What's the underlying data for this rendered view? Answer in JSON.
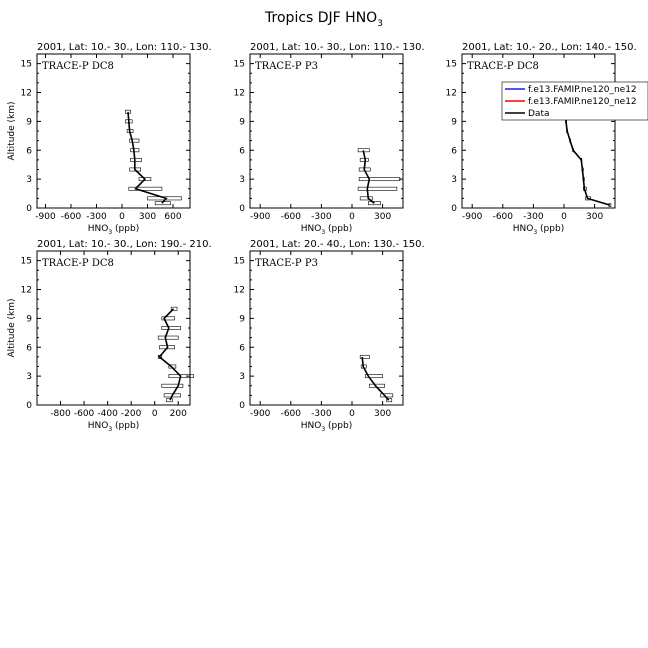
{
  "figure": {
    "title_main": "Tropics DJF HNO",
    "title_sub": "3"
  },
  "chart_data": [
    {
      "type": "line",
      "header": "2001, Lat: 10.- 30., Lon: 110.- 130.",
      "label": "TRACE-P DC8",
      "xlabel": "HNO",
      "xlabel_sub": "3",
      "xlabel_unit": " (ppb)",
      "ylabel": "Altitude (km)",
      "xlim": [
        -1000,
        800
      ],
      "xticks": [
        -900,
        -600,
        -300,
        0,
        300,
        600
      ],
      "ylim": [
        0,
        16
      ],
      "yticks": [
        0,
        3,
        6,
        9,
        12,
        15
      ],
      "profile": [
        {
          "alt": 0.5,
          "val": 470,
          "lo": 390,
          "hi": 570
        },
        {
          "alt": 1.0,
          "val": 520,
          "lo": 300,
          "hi": 700
        },
        {
          "alt": 2.0,
          "val": 160,
          "lo": 80,
          "hi": 470
        },
        {
          "alt": 3.0,
          "val": 270,
          "lo": 200,
          "hi": 340
        },
        {
          "alt": 4.0,
          "val": 150,
          "lo": 90,
          "hi": 220
        },
        {
          "alt": 5.0,
          "val": 150,
          "lo": 100,
          "hi": 230
        },
        {
          "alt": 6.0,
          "val": 140,
          "lo": 100,
          "hi": 200
        },
        {
          "alt": 7.0,
          "val": 120,
          "lo": 90,
          "hi": 200
        },
        {
          "alt": 8.0,
          "val": 90,
          "lo": 60,
          "hi": 130
        },
        {
          "alt": 9.0,
          "val": 80,
          "lo": 40,
          "hi": 120
        },
        {
          "alt": 10.0,
          "val": 70,
          "lo": 40,
          "hi": 100
        }
      ]
    },
    {
      "type": "line",
      "header": "2001, Lat: 10.- 30., Lon: 110.- 130.",
      "label": "TRACE-P P3",
      "xlabel": "HNO",
      "xlabel_sub": "3",
      "xlabel_unit": " (ppb)",
      "ylabel": "",
      "xlim": [
        -1000,
        500
      ],
      "xticks": [
        -900,
        -600,
        -300,
        0,
        300
      ],
      "ylim": [
        0,
        16
      ],
      "yticks": [
        0,
        3,
        6,
        9,
        12,
        15
      ],
      "profile": [
        {
          "alt": 0.5,
          "val": 220,
          "lo": 160,
          "hi": 280
        },
        {
          "alt": 1.0,
          "val": 160,
          "lo": 80,
          "hi": 200
        },
        {
          "alt": 2.0,
          "val": 150,
          "lo": 60,
          "hi": 440
        },
        {
          "alt": 3.0,
          "val": 170,
          "lo": 70,
          "hi": 470
        },
        {
          "alt": 4.0,
          "val": 120,
          "lo": 70,
          "hi": 180
        },
        {
          "alt": 5.0,
          "val": 130,
          "lo": 80,
          "hi": 160
        },
        {
          "alt": 6.0,
          "val": 110,
          "lo": 60,
          "hi": 170
        }
      ]
    },
    {
      "type": "line",
      "header": "2001, Lat: 10.- 20., Lon: 140.- 150.",
      "label": "TRACE-P DC8",
      "xlabel": "HNO",
      "xlabel_sub": "3",
      "xlabel_unit": " (ppb)",
      "ylabel": "",
      "xlim": [
        -1000,
        500
      ],
      "xticks": [
        -900,
        -600,
        -300,
        0,
        300
      ],
      "ylim": [
        0,
        16
      ],
      "yticks": [
        0,
        3,
        6,
        9,
        12,
        15
      ],
      "legend": [
        "f.e13.FAMIP.ne120_ne12",
        "f.e13.FAMIP.ne120_ne12",
        "Data"
      ],
      "legend_colors": [
        "#1a1aff",
        "#ff0000",
        "#000000"
      ],
      "profile": [
        {
          "alt": 0.3,
          "val": 450,
          "lo": 440,
          "hi": 460
        },
        {
          "alt": 1.0,
          "val": 230,
          "lo": 210,
          "hi": 260
        },
        {
          "alt": 2.0,
          "val": 200,
          "lo": 190,
          "hi": 220
        },
        {
          "alt": 3.0,
          "val": 190,
          "lo": 185,
          "hi": 200
        },
        {
          "alt": 4.0,
          "val": 180,
          "lo": 175,
          "hi": 190
        },
        {
          "alt": 5.0,
          "val": 170,
          "lo": 165,
          "hi": 175
        },
        {
          "alt": 6.0,
          "val": 90,
          "lo": 85,
          "hi": 95
        },
        {
          "alt": 7.0,
          "val": 60,
          "lo": 55,
          "hi": 65
        },
        {
          "alt": 8.0,
          "val": 30,
          "lo": 25,
          "hi": 35
        },
        {
          "alt": 9.0,
          "val": 20,
          "lo": 15,
          "hi": 25
        },
        {
          "alt": 10.0,
          "val": 20,
          "lo": 15,
          "hi": 25
        }
      ]
    },
    {
      "type": "line",
      "header": "2001, Lat: 10.- 30., Lon: 190.- 210.",
      "label": "TRACE-P DC8",
      "xlabel": "HNO",
      "xlabel_sub": "3",
      "xlabel_unit": " (ppb)",
      "ylabel": "Altitude (km)",
      "xlim": [
        -1000,
        300
      ],
      "xticks": [
        -800,
        -600,
        -400,
        -200,
        0,
        200
      ],
      "ylim": [
        0,
        16
      ],
      "yticks": [
        0,
        3,
        6,
        9,
        12,
        15
      ],
      "profile": [
        {
          "alt": 0.5,
          "val": 130,
          "lo": 100,
          "hi": 150
        },
        {
          "alt": 1.0,
          "val": 150,
          "lo": 80,
          "hi": 220
        },
        {
          "alt": 2.0,
          "val": 200,
          "lo": 60,
          "hi": 240
        },
        {
          "alt": 3.0,
          "val": 220,
          "lo": 120,
          "hi": 330
        },
        {
          "alt": 4.0,
          "val": 140,
          "lo": 120,
          "hi": 180
        },
        {
          "alt": 5.0,
          "val": 40,
          "lo": 30,
          "hi": 60
        },
        {
          "alt": 6.0,
          "val": 110,
          "lo": 40,
          "hi": 170
        },
        {
          "alt": 7.0,
          "val": 90,
          "lo": 30,
          "hi": 200
        },
        {
          "alt": 8.0,
          "val": 120,
          "lo": 60,
          "hi": 220
        },
        {
          "alt": 9.0,
          "val": 80,
          "lo": 60,
          "hi": 170
        },
        {
          "alt": 10.0,
          "val": 160,
          "lo": 140,
          "hi": 190
        }
      ]
    },
    {
      "type": "line",
      "header": "2001, Lat: 20.- 40., Lon: 130.- 150.",
      "label": "TRACE-P P3",
      "xlabel": "HNO",
      "xlabel_sub": "3",
      "xlabel_unit": " (ppb)",
      "ylabel": "",
      "xlim": [
        -1000,
        500
      ],
      "xticks": [
        -900,
        -600,
        -300,
        0,
        300
      ],
      "ylim": [
        0,
        16
      ],
      "yticks": [
        0,
        3,
        6,
        9,
        12,
        15
      ],
      "profile": [
        {
          "alt": 0.5,
          "val": 360,
          "lo": 340,
          "hi": 390
        },
        {
          "alt": 1.0,
          "val": 320,
          "lo": 280,
          "hi": 400
        },
        {
          "alt": 2.0,
          "val": 230,
          "lo": 170,
          "hi": 320
        },
        {
          "alt": 3.0,
          "val": 160,
          "lo": 130,
          "hi": 300
        },
        {
          "alt": 4.0,
          "val": 110,
          "lo": 90,
          "hi": 140
        },
        {
          "alt": 5.0,
          "val": 100,
          "lo": 80,
          "hi": 170
        }
      ]
    }
  ]
}
